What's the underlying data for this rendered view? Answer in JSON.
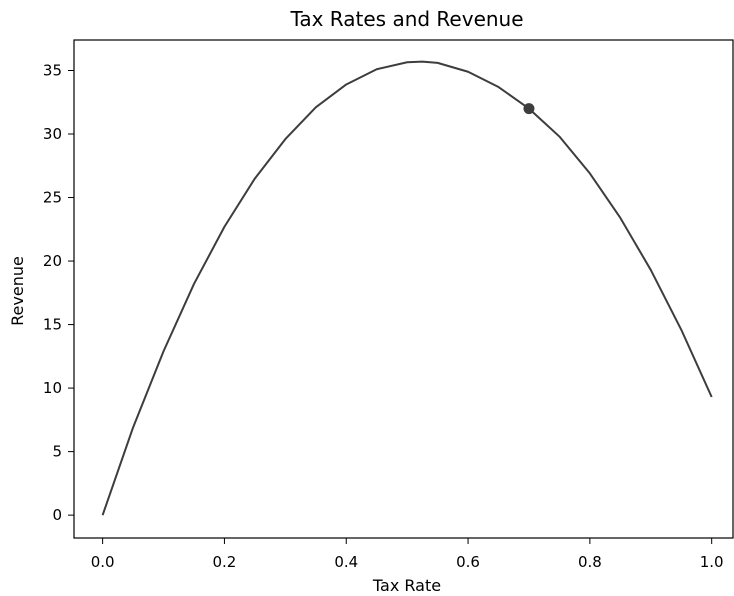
{
  "chart_data": {
    "type": "line",
    "title": "Tax Rates and Revenue",
    "xlabel": "Tax Rate",
    "ylabel": "Revenue",
    "xlim": [
      -0.047,
      1.035
    ],
    "ylim": [
      -1.8,
      37.4
    ],
    "xticks": [
      {
        "value": 0.0,
        "label": "0.0"
      },
      {
        "value": 0.2,
        "label": "0.2"
      },
      {
        "value": 0.4,
        "label": "0.4"
      },
      {
        "value": 0.6,
        "label": "0.6"
      },
      {
        "value": 0.8,
        "label": "0.8"
      },
      {
        "value": 1.0,
        "label": "1.0"
      }
    ],
    "yticks": [
      {
        "value": 0,
        "label": "0"
      },
      {
        "value": 5,
        "label": "5"
      },
      {
        "value": 10,
        "label": "10"
      },
      {
        "value": 15,
        "label": "15"
      },
      {
        "value": 20,
        "label": "20"
      },
      {
        "value": 25,
        "label": "25"
      },
      {
        "value": 30,
        "label": "30"
      },
      {
        "value": 35,
        "label": "35"
      }
    ],
    "grid": false,
    "series": [
      {
        "x": [
          0.0,
          0.05,
          0.1,
          0.15,
          0.2,
          0.25,
          0.3,
          0.35,
          0.4,
          0.45,
          0.5,
          0.525,
          0.55,
          0.6,
          0.65,
          0.7,
          0.75,
          0.8,
          0.85,
          0.9,
          0.95,
          1.0
        ],
        "y": [
          0.0,
          6.9,
          12.9,
          18.2,
          22.7,
          26.5,
          29.6,
          32.1,
          33.9,
          35.1,
          35.65,
          35.7,
          35.6,
          34.9,
          33.7,
          32.0,
          29.8,
          26.9,
          23.4,
          19.3,
          14.6,
          9.3
        ],
        "color": "#3d3d3d"
      }
    ],
    "highlight_point": {
      "x": 0.7,
      "y": 32.0,
      "color": "#3d3d3d"
    }
  }
}
